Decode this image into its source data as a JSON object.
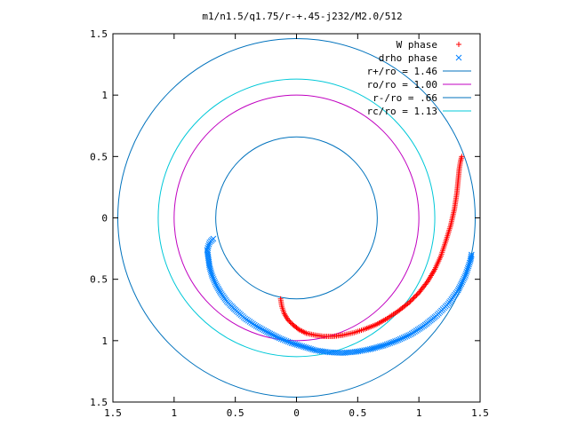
{
  "chart_data": {
    "type": "scatter",
    "title": "m1/n1.5/q1.75/r-+.45-j232/M2.0/512",
    "xlim": [
      -1.5,
      1.5
    ],
    "ylim": [
      -1.5,
      1.5
    ],
    "x_ticks": [
      -1.5,
      -1,
      -0.5,
      0,
      0.5,
      1,
      1.5
    ],
    "y_ticks": [
      -1.5,
      -1,
      -0.5,
      0,
      0.5,
      1,
      1.5
    ],
    "x_tick_labels": [
      "1.5",
      "1",
      "0.5",
      "0",
      "0.5",
      "1",
      "1.5"
    ],
    "y_tick_labels": [
      "1.5",
      "1",
      "0.5",
      "0",
      "0.5",
      "1",
      "1.5"
    ],
    "grid": false,
    "legend_position": "top-right",
    "series": [
      {
        "name": "W phase",
        "kind": "points",
        "marker": "plus",
        "color": "#ff0000",
        "points": [
          [
            -0.13,
            -0.66
          ],
          [
            -0.12,
            -0.72
          ],
          [
            -0.1,
            -0.78
          ],
          [
            -0.07,
            -0.83
          ],
          [
            -0.03,
            -0.87
          ],
          [
            0.02,
            -0.91
          ],
          [
            0.08,
            -0.94
          ],
          [
            0.15,
            -0.955
          ],
          [
            0.22,
            -0.965
          ],
          [
            0.3,
            -0.965
          ],
          [
            0.38,
            -0.955
          ],
          [
            0.47,
            -0.935
          ],
          [
            0.56,
            -0.905
          ],
          [
            0.65,
            -0.87
          ],
          [
            0.74,
            -0.82
          ],
          [
            0.83,
            -0.76
          ],
          [
            0.92,
            -0.69
          ],
          [
            1.0,
            -0.61
          ],
          [
            1.07,
            -0.52
          ],
          [
            1.13,
            -0.42
          ],
          [
            1.18,
            -0.31
          ],
          [
            1.22,
            -0.19
          ],
          [
            1.26,
            -0.06
          ],
          [
            1.29,
            0.07
          ],
          [
            1.31,
            0.2
          ],
          [
            1.32,
            0.3
          ],
          [
            1.33,
            0.4
          ],
          [
            1.34,
            0.46
          ],
          [
            1.35,
            0.5
          ]
        ]
      },
      {
        "name": "drho phase",
        "kind": "points",
        "marker": "cross",
        "color": "#0080ff",
        "points": [
          [
            -0.68,
            -0.17
          ],
          [
            -0.71,
            -0.2
          ],
          [
            -0.73,
            -0.26
          ],
          [
            -0.72,
            -0.33
          ],
          [
            -0.71,
            -0.4
          ],
          [
            -0.69,
            -0.47
          ],
          [
            -0.66,
            -0.54
          ],
          [
            -0.62,
            -0.61
          ],
          [
            -0.57,
            -0.68
          ],
          [
            -0.5,
            -0.75
          ],
          [
            -0.42,
            -0.82
          ],
          [
            -0.33,
            -0.88
          ],
          [
            -0.24,
            -0.93
          ],
          [
            -0.14,
            -0.98
          ],
          [
            -0.04,
            -1.02
          ],
          [
            0.06,
            -1.05
          ],
          [
            0.16,
            -1.08
          ],
          [
            0.27,
            -1.095
          ],
          [
            0.38,
            -1.1
          ],
          [
            0.49,
            -1.09
          ],
          [
            0.6,
            -1.07
          ],
          [
            0.71,
            -1.04
          ],
          [
            0.82,
            -1.0
          ],
          [
            0.93,
            -0.95
          ],
          [
            1.04,
            -0.88
          ],
          [
            1.14,
            -0.8
          ],
          [
            1.24,
            -0.7
          ],
          [
            1.32,
            -0.59
          ],
          [
            1.38,
            -0.47
          ],
          [
            1.42,
            -0.35
          ],
          [
            1.43,
            -0.3
          ]
        ]
      },
      {
        "name": "r+/ro = 1.46",
        "kind": "circle",
        "radius": 1.46,
        "color": "#0072bd"
      },
      {
        "name": "ro/ro = 1.00",
        "kind": "circle",
        "radius": 1.0,
        "color": "#c000c0"
      },
      {
        "name": "r-/ro = .66",
        "kind": "circle",
        "radius": 0.66,
        "color": "#0072bd"
      },
      {
        "name": "rc/ro = 1.13",
        "kind": "circle",
        "radius": 1.13,
        "color": "#00c8d8"
      }
    ]
  }
}
